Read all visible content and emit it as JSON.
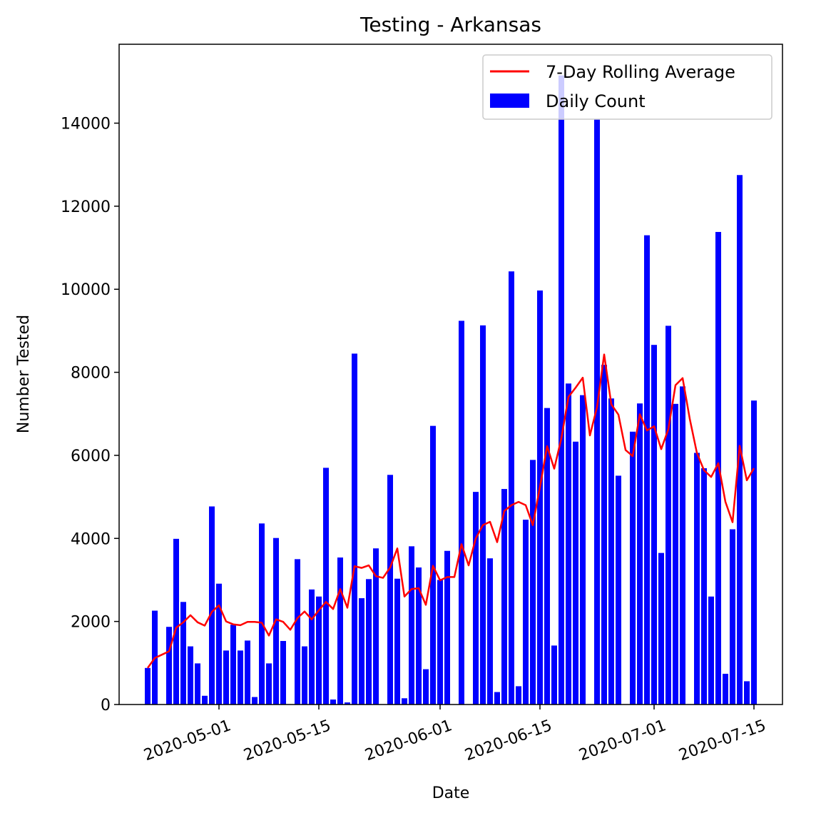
{
  "chart_data": {
    "type": "bar",
    "title": "Testing - Arkansas",
    "xlabel": "Date",
    "ylabel": "Number Tested",
    "ylim": [
      0,
      15900
    ],
    "xlim": [
      "2020-04-17",
      "2020-07-19"
    ],
    "x_ticks": [
      "2020-05-01",
      "2020-05-15",
      "2020-06-01",
      "2020-06-15",
      "2020-07-01",
      "2020-07-15"
    ],
    "y_ticks": [
      0,
      2000,
      4000,
      6000,
      8000,
      10000,
      12000,
      14000
    ],
    "x_tick_rotation": 20,
    "grid": false,
    "legend": {
      "location": "upper right"
    },
    "colors": {
      "bars": "#0000ff",
      "line": "#ff0000",
      "axes": "#000000"
    },
    "start_date": "2020-04-21",
    "bar_series": {
      "name": "Daily Count",
      "values": [
        880,
        2260,
        0,
        1870,
        3990,
        2470,
        1400,
        990,
        210,
        4770,
        2910,
        1300,
        1920,
        1300,
        1540,
        180,
        4360,
        990,
        4010,
        1530,
        0,
        3500,
        1400,
        2770,
        2600,
        5700,
        120,
        3540,
        50,
        8450,
        2560,
        3020,
        3760,
        0,
        5530,
        3030,
        150,
        3810,
        3300,
        850,
        6710,
        3000,
        3700,
        0,
        9240,
        0,
        5120,
        9130,
        3520,
        300,
        5190,
        10430,
        440,
        4450,
        5890,
        9970,
        7140,
        1420,
        15150,
        7730,
        6330,
        7450,
        0,
        14100,
        8180,
        7370,
        5510,
        0,
        6570,
        7250,
        11300,
        8660,
        3650,
        9120,
        7240,
        7660,
        0,
        6060,
        5690,
        2600,
        11380,
        740,
        4220,
        12750,
        560,
        7320
      ]
    },
    "line_series": {
      "name": "7-Day Rolling Average",
      "values": [
        880,
        1120,
        1200,
        1280,
        1850,
        1980,
        2150,
        1980,
        1900,
        2230,
        2390,
        2000,
        1930,
        1910,
        1990,
        1990,
        1970,
        1660,
        2050,
        1990,
        1800,
        2080,
        2240,
        2050,
        2270,
        2470,
        2300,
        2780,
        2330,
        3330,
        3290,
        3350,
        3090,
        3050,
        3300,
        3760,
        2600,
        2780,
        2800,
        2400,
        3340,
        2990,
        3070,
        3070,
        3860,
        3350,
        4000,
        4320,
        4400,
        3910,
        4660,
        4800,
        4880,
        4800,
        4320,
        5240,
        6220,
        5680,
        6410,
        7410,
        7630,
        7870,
        6480,
        7160,
        8430,
        7230,
        6980,
        6130,
        5980,
        6990,
        6600,
        6700,
        6150,
        6630,
        7690,
        7860,
        6880,
        6060,
        5640,
        5480,
        5810,
        4880,
        4390,
        6230,
        5400,
        5690
      ]
    }
  }
}
